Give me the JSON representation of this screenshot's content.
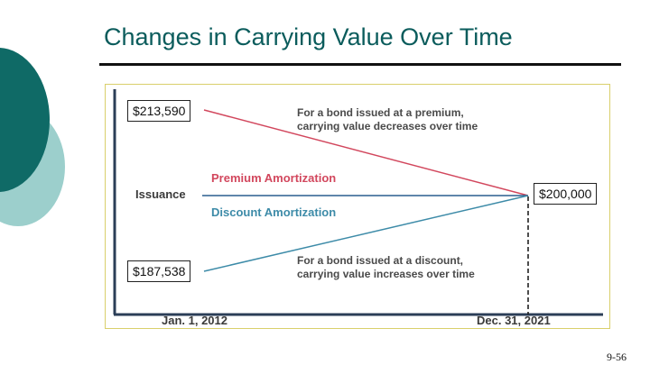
{
  "slide": {
    "title": "Changes in Carrying Value Over Time",
    "page_number": "9-56"
  },
  "diagram": {
    "labels": {
      "issuance": "Issuance",
      "premium_amortization": "Premium Amortization",
      "discount_amortization": "Discount Amortization",
      "premium_note_line1": "For a bond issued at a premium,",
      "premium_note_line2": "carrying value decreases over time",
      "discount_note_line1": "For a bond issued at a discount,",
      "discount_note_line2": "carrying value increases over time",
      "start_date": "Jan. 1, 2012",
      "end_date": "Dec. 31, 2021"
    },
    "values": {
      "premium_start": "$213,590",
      "face_value": "$200,000",
      "discount_start": "$187,538"
    },
    "colors": {
      "premium": "#d2475d",
      "discount": "#3d8ba8",
      "issuance_line": "#2a5f8f",
      "title": "#0b5c5c",
      "teal_dark": "#0f6a66",
      "teal_light": "#9ccfcc"
    }
  }
}
